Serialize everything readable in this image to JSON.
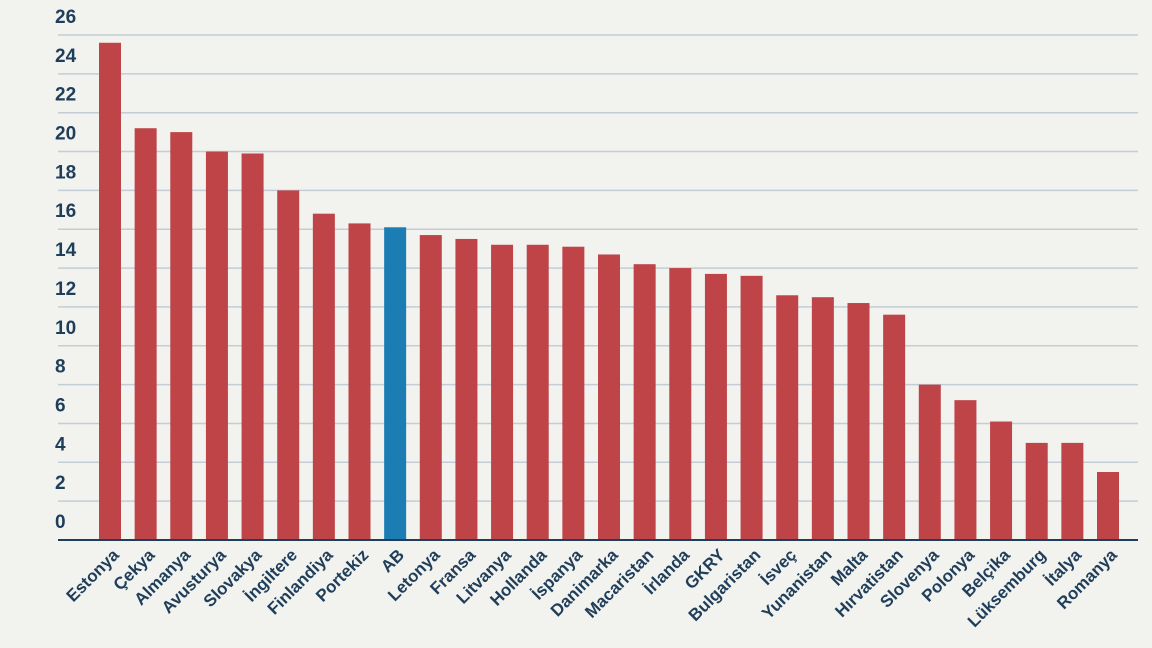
{
  "chart_data": {
    "type": "bar",
    "title": "",
    "xlabel": "",
    "ylabel": "",
    "ylim": [
      0,
      26
    ],
    "yticks": [
      0,
      2,
      4,
      6,
      8,
      10,
      12,
      14,
      16,
      18,
      20,
      22,
      24,
      26
    ],
    "grid": true,
    "categories": [
      "Estonya",
      "Çekya",
      "Almanya",
      "Avusturya",
      "Slovakya",
      "İngiltere",
      "Finlandiya",
      "Portekiz",
      "AB",
      "Letonya",
      "Fransa",
      "Litvanya",
      "Hollanda",
      "İspanya",
      "Danimarka",
      "Macaristan",
      "İrlanda",
      "GKRY",
      "Bulgaristan",
      "İsveç",
      "Yunanistan",
      "Malta",
      "Hırvatistan",
      "Slovenya",
      "Polonya",
      "Belçika",
      "Lüksemburg",
      "İtalya",
      "Romanya"
    ],
    "values": [
      25.6,
      21.2,
      21.0,
      20.0,
      19.9,
      18.0,
      16.8,
      16.3,
      16.1,
      15.7,
      15.5,
      15.2,
      15.2,
      15.1,
      14.7,
      14.2,
      14.0,
      13.7,
      13.6,
      12.6,
      12.5,
      12.2,
      11.6,
      8.0,
      7.2,
      6.1,
      5.0,
      5.0,
      3.5
    ],
    "colors": {
      "default": "#be4448",
      "highlight": "#1b7db3",
      "grid": "#c3cdd6",
      "axis": "#1f3e5a",
      "text": "#1f3e5a"
    },
    "highlight_category": "AB"
  }
}
